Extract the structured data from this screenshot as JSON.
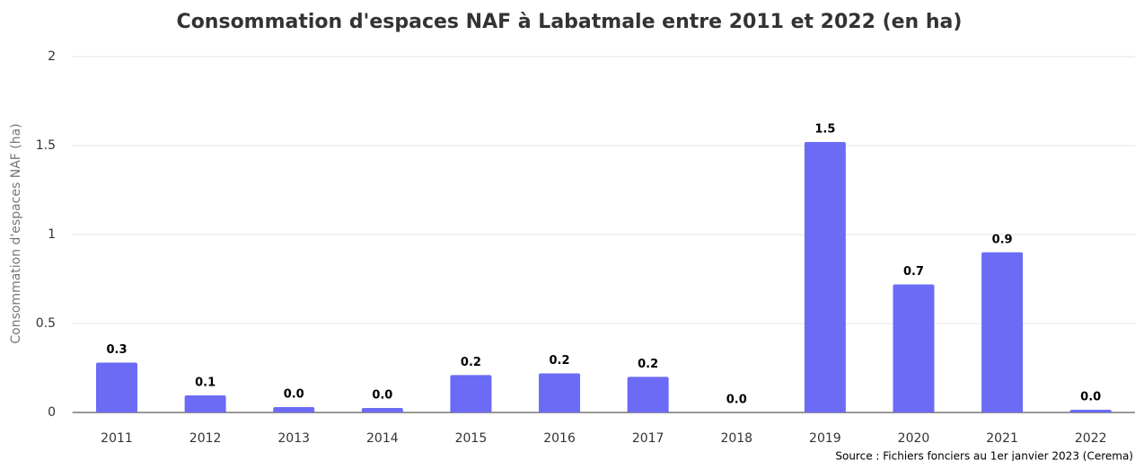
{
  "chart_data": {
    "type": "bar",
    "title": "Consommation d'espaces NAF à Labatmale entre 2011 et 2022 (en ha)",
    "y_label": "Consommation d'espaces NAF (ha)",
    "source": "Source : Fichiers fonciers au 1er janvier 2023 (Cerema)",
    "categories": [
      "2011",
      "2012",
      "2013",
      "2014",
      "2015",
      "2016",
      "2017",
      "2018",
      "2019",
      "2020",
      "2021",
      "2022"
    ],
    "values": [
      0.28,
      0.096,
      0.03,
      0.025,
      0.21,
      0.22,
      0.2,
      0,
      1.52,
      0.72,
      0.9,
      0.015
    ],
    "value_labels": [
      "0.3",
      "0.1",
      "0.0",
      "0.0",
      "0.2",
      "0.2",
      "0.2",
      "0.0",
      "1.5",
      "0.7",
      "0.9",
      "0.0"
    ],
    "color": "#6b6bf5",
    "ylim": [
      0,
      2
    ],
    "yticks": [
      0,
      0.5,
      1,
      1.5,
      2
    ],
    "grid": true
  }
}
